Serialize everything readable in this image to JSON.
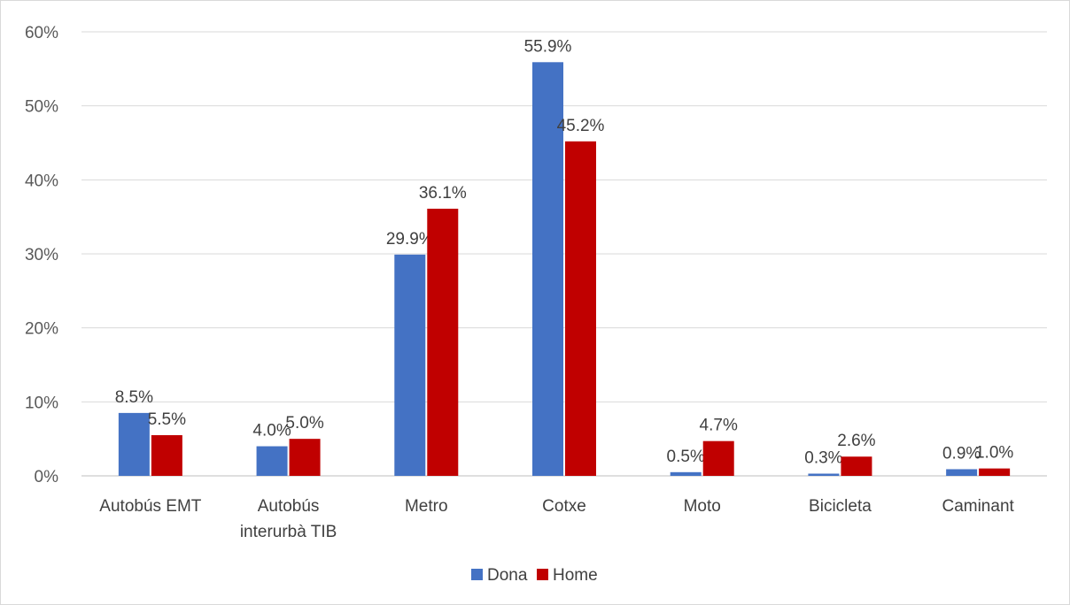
{
  "chart_data": {
    "type": "bar",
    "title": "",
    "xlabel": "",
    "ylabel": "",
    "ylim": [
      0,
      60
    ],
    "y_ticks": [
      "0%",
      "10%",
      "20%",
      "30%",
      "40%",
      "50%",
      "60%"
    ],
    "y_tick_values": [
      0,
      10,
      20,
      30,
      40,
      50,
      60
    ],
    "grid": true,
    "legend_position": "bottom",
    "categories": [
      [
        "Autobús EMT"
      ],
      [
        "Autobús",
        "interurbà TIB"
      ],
      [
        "Metro"
      ],
      [
        "Cotxe"
      ],
      [
        "Moto"
      ],
      [
        "Bicicleta"
      ],
      [
        "Caminant"
      ]
    ],
    "series": [
      {
        "name": "Dona",
        "color": "#4472C4",
        "values": [
          8.5,
          4.0,
          29.9,
          55.9,
          0.5,
          0.3,
          0.9
        ],
        "labels": [
          "8.5%",
          "4.0%",
          "29.9%",
          "55.9%",
          "0.5%",
          "0.3%",
          "0.9%"
        ]
      },
      {
        "name": "Home",
        "color": "#C00000",
        "values": [
          5.5,
          5.0,
          36.1,
          45.2,
          4.7,
          2.6,
          1.0
        ],
        "labels": [
          "5.5%",
          "5.0%",
          "36.1%",
          "45.2%",
          "4.7%",
          "2.6%",
          "1.0%"
        ]
      }
    ]
  }
}
